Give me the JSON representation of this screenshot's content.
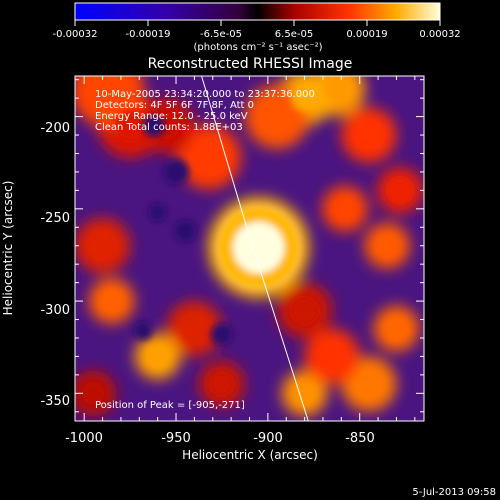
{
  "colorbar": {
    "ticks": [
      "-0.00032",
      "-0.00019",
      "-6.5e-05",
      "6.5e-05",
      "0.00019",
      "0.00032"
    ],
    "unit_label": "(photons cm⁻² s⁻¹ asec⁻²)"
  },
  "plot": {
    "title": "Reconstructed RHESSI Image",
    "xlabel": "Heliocentric X (arcsec)",
    "ylabel": "Heliocentric Y (arcsec)",
    "xticks": [
      "-1000",
      "-950",
      "-900",
      "-850"
    ],
    "yticks": [
      "-200",
      "-250",
      "-300",
      "-350"
    ],
    "info_lines": [
      "10-May-2005 23:34:20.000 to 23:37:36.000",
      "Detectors: 4F 5F 6F 7F 8F, Att 0",
      "Energy Range: 12.0 - 25.0 keV",
      "Clean     Total counts: 1.88E+03"
    ],
    "peak_text": "Position of Peak = [-905,-271]"
  },
  "footer": {
    "timestamp": "5-Jul-2013 09:58"
  },
  "image_map": {
    "xrange": [
      -1005,
      -815
    ],
    "yrange": [
      -365,
      -178
    ],
    "peak": [
      -905,
      -271
    ],
    "blobs": [
      {
        "x": -905,
        "y": -271,
        "r": 14,
        "c": "#ffffe0"
      },
      {
        "x": -905,
        "y": -271,
        "r": 22,
        "c": "#ffb800"
      },
      {
        "x": -987,
        "y": -186,
        "r": 16,
        "c": "#ff4400"
      },
      {
        "x": -975,
        "y": -205,
        "r": 14,
        "c": "#dd1500"
      },
      {
        "x": -955,
        "y": -205,
        "r": 12,
        "c": "#cc1000"
      },
      {
        "x": -932,
        "y": -222,
        "r": 14,
        "c": "#ff3a00"
      },
      {
        "x": -895,
        "y": -200,
        "r": 14,
        "c": "#ff5500"
      },
      {
        "x": -880,
        "y": -190,
        "r": 12,
        "c": "#ffaa00"
      },
      {
        "x": -862,
        "y": -185,
        "r": 12,
        "c": "#ff9900"
      },
      {
        "x": -845,
        "y": -210,
        "r": 12,
        "c": "#ff3300"
      },
      {
        "x": -828,
        "y": -240,
        "r": 10,
        "c": "#ee2000"
      },
      {
        "x": -858,
        "y": -250,
        "r": 10,
        "c": "#ff4400"
      },
      {
        "x": -835,
        "y": -270,
        "r": 10,
        "c": "#ff5a00"
      },
      {
        "x": -880,
        "y": -305,
        "r": 12,
        "c": "#cc1200"
      },
      {
        "x": -865,
        "y": -330,
        "r": 12,
        "c": "#ff3000"
      },
      {
        "x": -845,
        "y": -345,
        "r": 12,
        "c": "#ff7700"
      },
      {
        "x": -830,
        "y": -315,
        "r": 10,
        "c": "#ff6600"
      },
      {
        "x": -880,
        "y": -350,
        "r": 10,
        "c": "#ff9000"
      },
      {
        "x": -990,
        "y": -270,
        "r": 12,
        "c": "#e02000"
      },
      {
        "x": -985,
        "y": -300,
        "r": 10,
        "c": "#ff6000"
      },
      {
        "x": -960,
        "y": -330,
        "r": 10,
        "c": "#ffa000"
      },
      {
        "x": -940,
        "y": -315,
        "r": 12,
        "c": "#dd2000"
      },
      {
        "x": -925,
        "y": -345,
        "r": 10,
        "c": "#cc1800"
      },
      {
        "x": -995,
        "y": -350,
        "r": 10,
        "c": "#bb1000"
      }
    ],
    "dark_spots": [
      {
        "x": -962,
        "y": -205,
        "r": 6
      },
      {
        "x": -950,
        "y": -230,
        "r": 7
      },
      {
        "x": -945,
        "y": -262,
        "r": 6
      },
      {
        "x": -960,
        "y": -252,
        "r": 5
      },
      {
        "x": -925,
        "y": -318,
        "r": 6
      },
      {
        "x": -968,
        "y": -316,
        "r": 5
      }
    ],
    "limb": [
      [
        -937,
        -175
      ],
      [
        -910,
        -265
      ],
      [
        -878,
        -365
      ]
    ]
  }
}
